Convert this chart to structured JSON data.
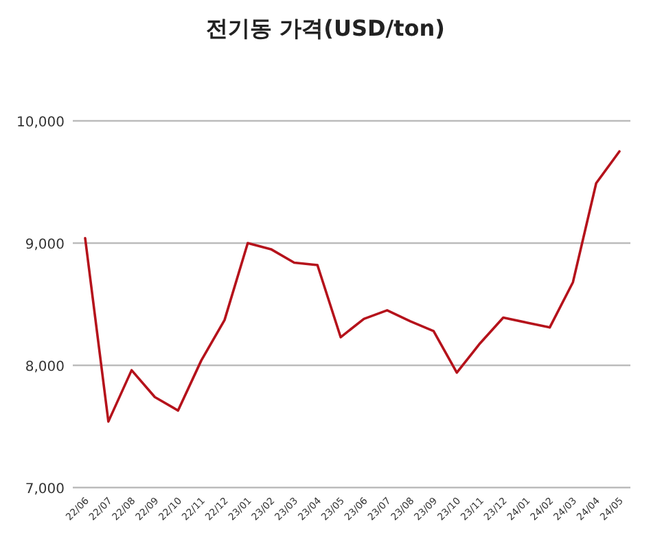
{
  "chart_data": {
    "type": "line",
    "title": "전기동 가격(USD/ton)",
    "categories": [
      "22/06",
      "22/07",
      "22/08",
      "22/09",
      "22/10",
      "22/11",
      "22/12",
      "23/01",
      "23/02",
      "23/03",
      "23/04",
      "23/05",
      "23/06",
      "23/07",
      "23/08",
      "23/09",
      "23/10",
      "23/11",
      "23/12",
      "24/01",
      "24/02",
      "24/03",
      "24/04",
      "24/05"
    ],
    "series": [
      {
        "color": "#b5121b",
        "values": [
          9040,
          7540,
          7960,
          7740,
          7630,
          8040,
          8370,
          9000,
          8950,
          8840,
          8820,
          8230,
          8380,
          8450,
          8360,
          8280,
          7940,
          8180,
          8390,
          8350,
          8310,
          8680,
          9490,
          9750
        ]
      }
    ],
    "ylim": [
      7000,
      10000
    ],
    "yticks": [
      {
        "value": 7000,
        "label": "7,000"
      },
      {
        "value": 8000,
        "label": "8,000"
      },
      {
        "value": 9000,
        "label": "9,000"
      },
      {
        "value": 10000,
        "label": "10,000"
      }
    ],
    "grid": "y",
    "marker": "none",
    "line_style": "solid"
  }
}
